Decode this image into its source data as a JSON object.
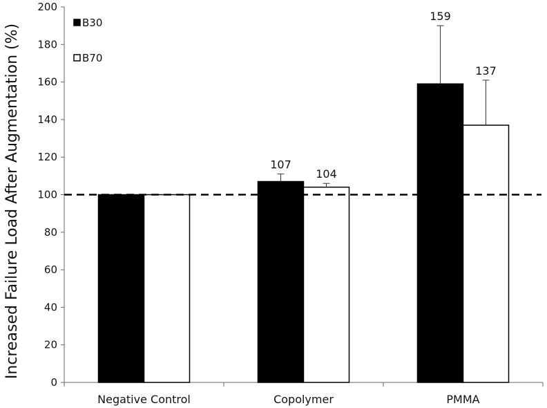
{
  "chart_data": {
    "type": "bar",
    "title": "",
    "xlabel": "",
    "ylabel": "Increased Failure Load After Augmentation (%)",
    "ylim": [
      0,
      200
    ],
    "yticks": [
      0,
      20,
      40,
      60,
      80,
      100,
      120,
      140,
      160,
      180,
      200
    ],
    "categories": [
      "Negative Control",
      "Copolymer",
      "PMMA"
    ],
    "series": [
      {
        "name": "B30",
        "color": "#000000",
        "values": [
          100,
          107,
          159
        ],
        "errors": [
          0,
          4,
          31
        ],
        "data_labels": [
          "",
          "107",
          "159"
        ]
      },
      {
        "name": "B70",
        "color": "#ffffff",
        "values": [
          100,
          104,
          137
        ],
        "errors": [
          0,
          2,
          24
        ],
        "data_labels": [
          "",
          "104",
          "137"
        ]
      }
    ],
    "reference_line": {
      "value": 100,
      "style": "dashed"
    },
    "legend": {
      "position": "top-left",
      "items": [
        "B30",
        "B70"
      ]
    },
    "grid": false
  }
}
